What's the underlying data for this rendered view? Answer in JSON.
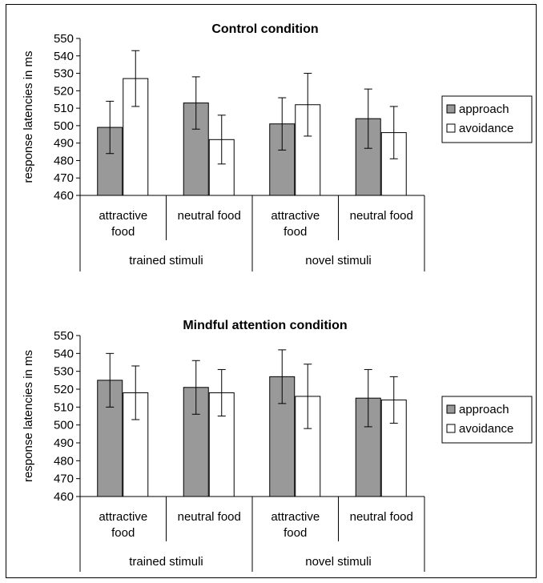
{
  "chart_data": [
    {
      "type": "bar",
      "title": "Control condition",
      "ylabel": "response latencies in ms",
      "ylim": [
        460,
        550
      ],
      "ytick_step": 10,
      "categories": [
        "attractive\nfood",
        "neutral food",
        "attractive\nfood",
        "neutral food"
      ],
      "groups": [
        {
          "label": "trained stimuli",
          "span": [
            0,
            1
          ]
        },
        {
          "label": "novel stimuli",
          "span": [
            2,
            3
          ]
        }
      ],
      "series": [
        {
          "name": "approach",
          "color": "#999999",
          "values": [
            499,
            513,
            501,
            504
          ],
          "errors": [
            15,
            15,
            15,
            17
          ]
        },
        {
          "name": "avoidance",
          "color": "#ffffff",
          "values": [
            527,
            492,
            512,
            496
          ],
          "errors": [
            16,
            14,
            18,
            15
          ]
        }
      ],
      "legend_position": "right"
    },
    {
      "type": "bar",
      "title": "Mindful attention condition",
      "ylabel": "response latencies in ms",
      "ylim": [
        460,
        550
      ],
      "ytick_step": 10,
      "categories": [
        "attractive\nfood",
        "neutral food",
        "attractive\nfood",
        "neutral food"
      ],
      "groups": [
        {
          "label": "trained stimuli",
          "span": [
            0,
            1
          ]
        },
        {
          "label": "novel stimuli",
          "span": [
            2,
            3
          ]
        }
      ],
      "series": [
        {
          "name": "approach",
          "color": "#999999",
          "values": [
            525,
            521,
            527,
            515
          ],
          "errors": [
            15,
            15,
            15,
            16
          ]
        },
        {
          "name": "avoidance",
          "color": "#ffffff",
          "values": [
            518,
            518,
            516,
            514
          ],
          "errors": [
            15,
            13,
            18,
            13
          ]
        }
      ],
      "legend_position": "right"
    }
  ]
}
